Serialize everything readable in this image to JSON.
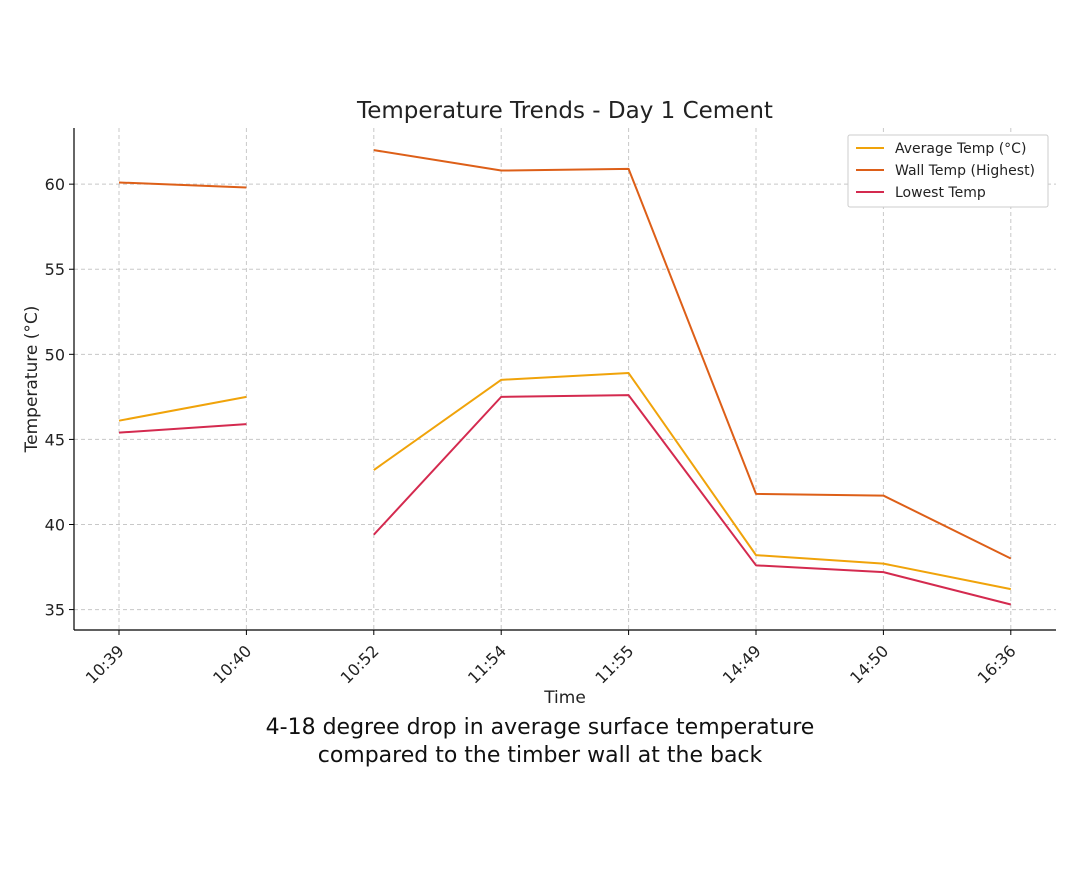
{
  "chart_data": {
    "type": "line",
    "title": "Temperature Trends - Day 1 Cement",
    "xlabel": "Time",
    "ylabel": "Temperature (°C)",
    "categories": [
      "10:39",
      "10:40",
      "10:52",
      "11:54",
      "11:55",
      "14:49",
      "14:50",
      "16:36"
    ],
    "ylim": [
      33.8,
      63.3
    ],
    "yticks": [
      35,
      40,
      45,
      50,
      55,
      60
    ],
    "grid": true,
    "legend_position": "top-right",
    "series": [
      {
        "name": "Average Temp (°C)",
        "color": "#f0a30a",
        "values": [
          46.1,
          47.5,
          43.2,
          48.5,
          48.9,
          38.2,
          37.7,
          36.2
        ]
      },
      {
        "name": "Wall Temp (Highest)",
        "color": "#dd5f18",
        "values": [
          60.1,
          59.8,
          62.0,
          60.8,
          60.9,
          41.8,
          41.7,
          38.0
        ]
      },
      {
        "name": "Lowest Temp",
        "color": "#d42a4f",
        "values": [
          45.4,
          45.9,
          39.4,
          47.5,
          47.6,
          37.6,
          37.2,
          35.3
        ]
      }
    ],
    "segments": [
      [
        0,
        1
      ],
      [
        2,
        7
      ]
    ]
  },
  "caption": "4-18 degree drop in average surface temperature compared to the timber wall at the back"
}
